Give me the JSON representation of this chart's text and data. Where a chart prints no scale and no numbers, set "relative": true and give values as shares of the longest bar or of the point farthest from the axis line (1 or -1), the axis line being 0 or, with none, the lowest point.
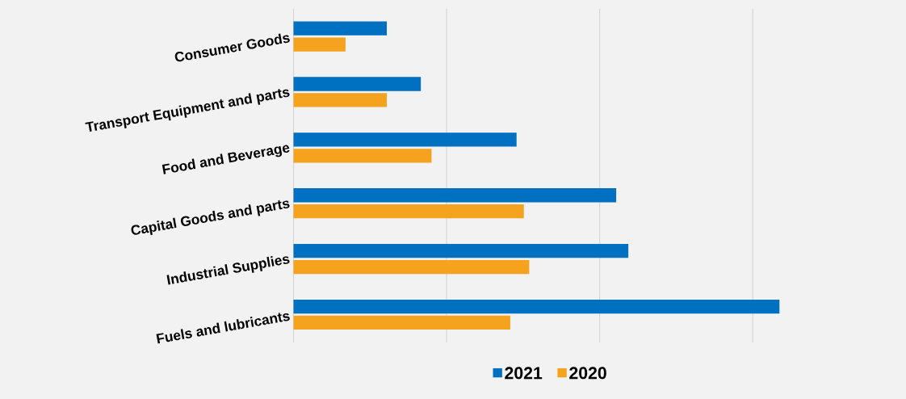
{
  "chart_data": {
    "type": "bar",
    "orientation": "horizontal",
    "relative": true,
    "categories": [
      "Consumer Goods",
      "Transport Equipment and parts",
      "Food and Beverage",
      "Capital Goods and parts",
      "Industrial Supplies",
      "Fuels and lubricants"
    ],
    "series": [
      {
        "name": "2021",
        "color": "#0070c0",
        "values": [
          0.192,
          0.262,
          0.459,
          0.664,
          0.689,
          1.0
        ]
      },
      {
        "name": "2020",
        "color": "#f5a21f",
        "values": [
          0.107,
          0.192,
          0.284,
          0.474,
          0.485,
          0.446
        ]
      }
    ],
    "grid": "x",
    "legend": "bottom"
  }
}
